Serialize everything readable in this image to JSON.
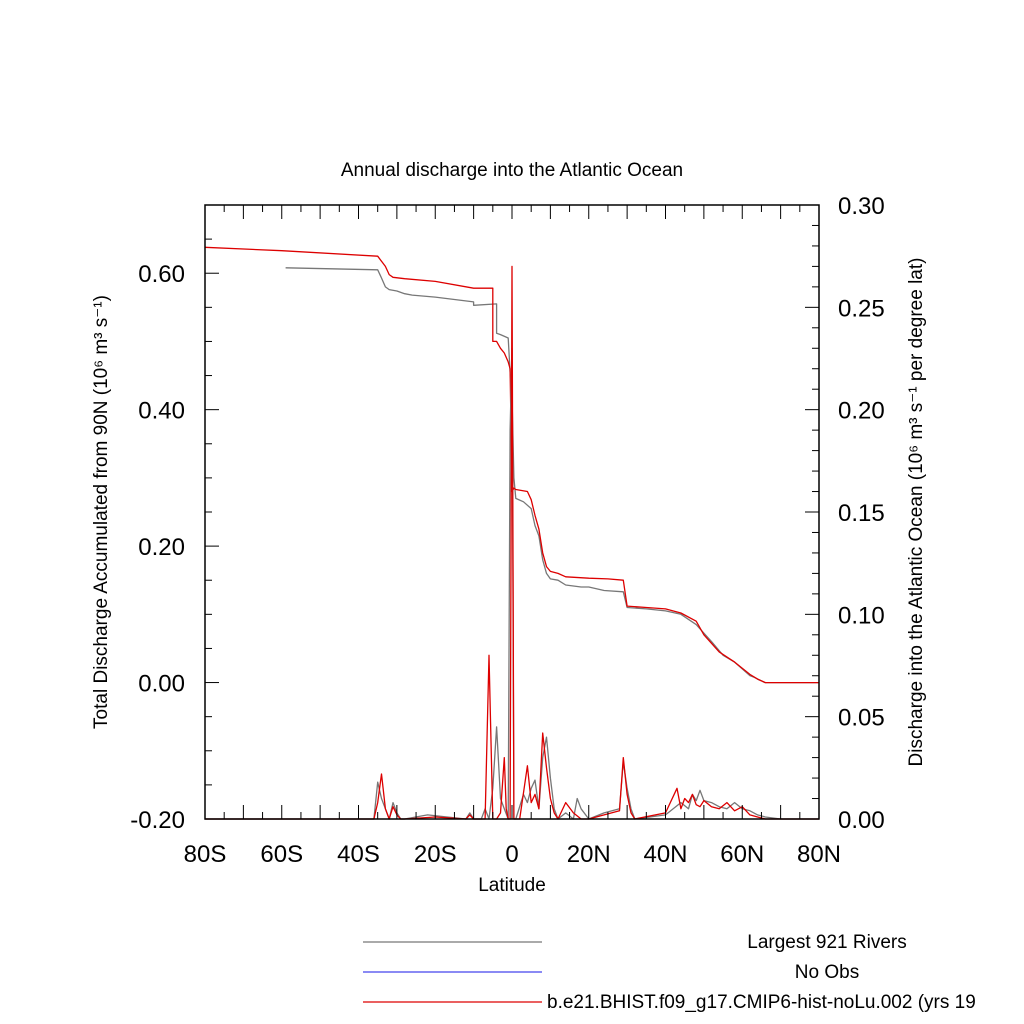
{
  "chart_data": {
    "type": "line",
    "title": "Annual discharge into the Atlantic Ocean",
    "xlabel": "Latitude",
    "ylabel_left": "Total Discharge Accumulated from 90N (10⁶ m³ s⁻¹)",
    "ylabel_right": "Discharge into the Atlantic Ocean (10⁶ m³ s⁻¹ per degree lat)",
    "xlim": [
      -80,
      80
    ],
    "ylim_left": [
      -0.2,
      0.7
    ],
    "ylim_right": [
      0.0,
      0.3
    ],
    "x_ticks": [
      {
        "value": -80,
        "label": "80S"
      },
      {
        "value": -60,
        "label": "60S"
      },
      {
        "value": -40,
        "label": "40S"
      },
      {
        "value": -20,
        "label": "20S"
      },
      {
        "value": 0,
        "label": "0"
      },
      {
        "value": 20,
        "label": "20N"
      },
      {
        "value": 40,
        "label": "40N"
      },
      {
        "value": 60,
        "label": "60N"
      },
      {
        "value": 80,
        "label": "80N"
      }
    ],
    "y_left_ticks": [
      {
        "value": -0.2,
        "label": "-0.20"
      },
      {
        "value": 0.0,
        "label": "0.00"
      },
      {
        "value": 0.2,
        "label": "0.20"
      },
      {
        "value": 0.4,
        "label": "0.40"
      },
      {
        "value": 0.6,
        "label": "0.60"
      }
    ],
    "y_right_ticks": [
      {
        "value": 0.0,
        "label": "0.00"
      },
      {
        "value": 0.05,
        "label": "0.05"
      },
      {
        "value": 0.1,
        "label": "0.10"
      },
      {
        "value": 0.15,
        "label": "0.15"
      },
      {
        "value": 0.2,
        "label": "0.20"
      },
      {
        "value": 0.25,
        "label": "0.25"
      },
      {
        "value": 0.3,
        "label": "0.30"
      }
    ],
    "grid": false,
    "legend_position": "bottom",
    "series": [
      {
        "name": "Largest 921 Rivers",
        "color": "#777777",
        "axis": "left",
        "x": [
          -59,
          -35,
          -34,
          -33,
          -32,
          -30,
          -28,
          -26,
          -20,
          -10,
          -10,
          -4,
          -4,
          -3,
          -1,
          -0.5,
          0,
          0.5,
          1,
          3,
          5,
          6,
          7,
          8,
          9,
          10,
          12,
          14,
          18,
          20,
          24,
          29,
          30,
          35,
          40,
          44,
          48,
          52,
          55,
          58,
          61,
          62,
          63,
          64,
          66,
          68,
          70,
          75,
          80
        ],
        "y": [
          0.608,
          0.605,
          0.593,
          0.58,
          0.576,
          0.574,
          0.57,
          0.568,
          0.565,
          0.558,
          0.553,
          0.555,
          0.512,
          0.51,
          0.505,
          0.455,
          0.42,
          0.3,
          0.27,
          0.265,
          0.255,
          0.23,
          0.215,
          0.18,
          0.16,
          0.152,
          0.15,
          0.143,
          0.14,
          0.14,
          0.135,
          0.133,
          0.11,
          0.108,
          0.105,
          0.1,
          0.085,
          0.06,
          0.04,
          0.03,
          0.015,
          0.01,
          0.008,
          0.005,
          0.0,
          0.0,
          0.0,
          0.0,
          0.0
        ]
      },
      {
        "name": "No Obs",
        "color": "#4444ee",
        "axis": "right",
        "x": [],
        "y": []
      },
      {
        "name": "b.e21.BHIST.f09_g17.CMIP6-hist-noLu.002 (yrs 19",
        "color": "#dd0000",
        "axis": "left",
        "x": [
          -80,
          -60,
          -35,
          -33,
          -32,
          -31,
          -28,
          -20,
          -10,
          -5,
          -5,
          -4,
          -3,
          -2,
          -1,
          -0.5,
          0,
          0.5,
          1,
          4,
          5,
          6,
          7,
          8,
          9,
          10,
          12,
          14,
          20,
          25,
          29,
          30,
          35,
          40,
          44,
          48,
          50,
          54,
          58,
          62,
          64,
          66,
          70,
          75,
          80
        ],
        "y": [
          0.638,
          0.633,
          0.625,
          0.61,
          0.598,
          0.594,
          0.592,
          0.588,
          0.578,
          0.578,
          0.5,
          0.5,
          0.49,
          0.483,
          0.47,
          0.46,
          0.28,
          0.285,
          0.283,
          0.28,
          0.268,
          0.245,
          0.225,
          0.19,
          0.17,
          0.163,
          0.16,
          0.155,
          0.153,
          0.152,
          0.15,
          0.112,
          0.11,
          0.108,
          0.102,
          0.09,
          0.07,
          0.045,
          0.03,
          0.012,
          0.005,
          0.0,
          0.0,
          0.0,
          0.0
        ]
      },
      {
        "name": "Largest 921 Rivers (per degree lat)",
        "color": "#777777",
        "axis": "right",
        "x": [
          -80,
          -36,
          -35,
          -34,
          -33,
          -32,
          -31,
          -30,
          -29,
          -28,
          -22,
          -12,
          -11,
          -10,
          -8,
          -7,
          -6,
          -5,
          -4,
          -3,
          -2,
          -1,
          -0.5,
          0,
          0.5,
          1,
          3,
          4,
          5,
          6,
          7,
          8,
          9,
          10,
          11,
          12,
          14,
          16,
          17,
          18,
          20,
          24,
          28,
          29,
          30,
          31,
          32,
          40,
          44,
          46,
          47,
          48,
          49,
          50,
          52,
          54,
          56,
          58,
          60,
          62,
          64,
          66,
          70,
          80
        ],
        "y": [
          0.0,
          0.0,
          0.018,
          0.01,
          0.005,
          0.0,
          0.008,
          0.003,
          0.0,
          0.0,
          0.002,
          0.0,
          0.003,
          0.0,
          0.0,
          0.005,
          0.0,
          0.015,
          0.045,
          0.01,
          0.005,
          0.0,
          0.19,
          0.23,
          0.0,
          0.0,
          0.012,
          0.008,
          0.015,
          0.019,
          0.005,
          0.03,
          0.04,
          0.02,
          0.005,
          0.0,
          0.003,
          0.0,
          0.01,
          0.005,
          0.0,
          0.003,
          0.005,
          0.028,
          0.015,
          0.005,
          0.0,
          0.002,
          0.008,
          0.005,
          0.012,
          0.009,
          0.014,
          0.009,
          0.008,
          0.006,
          0.005,
          0.008,
          0.005,
          0.004,
          0.002,
          0.001,
          0.0,
          0.0
        ]
      },
      {
        "name": "b.e21.BHIST.f09_g17.CMIP6-hist-noLu.002 (per degree lat)",
        "color": "#dd0000",
        "axis": "right",
        "x": [
          -80,
          -36,
          -35,
          -34,
          -33,
          -32,
          -31,
          -30,
          -29,
          -28,
          -20,
          -12,
          -11,
          -10,
          -7,
          -6,
          -5,
          -4,
          -3,
          -2,
          -1.5,
          -1,
          -0.5,
          0,
          0.5,
          2,
          4,
          5,
          6,
          7,
          8,
          9,
          10,
          11,
          12,
          14,
          16,
          18,
          20,
          24,
          28,
          29,
          30,
          31,
          32,
          40,
          43,
          44,
          45,
          46,
          47,
          48,
          49,
          50,
          52,
          54,
          56,
          58,
          60,
          62,
          64,
          66,
          70,
          80
        ],
        "y": [
          0.0,
          0.0,
          0.008,
          0.022,
          0.005,
          0.0,
          0.006,
          0.002,
          0.0,
          0.0,
          0.001,
          0.0,
          0.002,
          0.0,
          0.0,
          0.08,
          0.0,
          0.0,
          0.003,
          0.03,
          0.005,
          0.0,
          0.0,
          0.27,
          0.0,
          0.0,
          0.026,
          0.008,
          0.012,
          0.005,
          0.042,
          0.025,
          0.01,
          0.003,
          0.0,
          0.008,
          0.003,
          0.0,
          0.0,
          0.002,
          0.004,
          0.03,
          0.012,
          0.003,
          0.0,
          0.003,
          0.015,
          0.005,
          0.01,
          0.008,
          0.012,
          0.007,
          0.006,
          0.009,
          0.006,
          0.005,
          0.008,
          0.004,
          0.006,
          0.002,
          0.001,
          0.0,
          0.0,
          0.0
        ]
      }
    ]
  },
  "legend": {
    "items": [
      {
        "label": "Largest 921 Rivers",
        "color": "#777777"
      },
      {
        "label": "No Obs",
        "color": "#4444ee"
      },
      {
        "label": "b.e21.BHIST.f09_g17.CMIP6-hist-noLu.002 (yrs 19",
        "color": "#dd0000"
      }
    ]
  }
}
